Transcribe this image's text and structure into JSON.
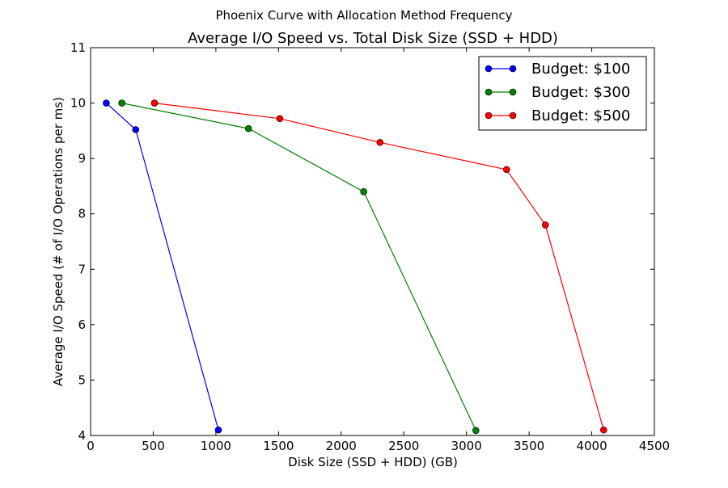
{
  "chart_data": {
    "type": "line",
    "suptitle": "Phoenix Curve with Allocation Method Frequency",
    "title": "Average I/O Speed vs. Total Disk Size (SSD + HDD)",
    "xlabel": "Disk Size (SSD + HDD) (GB)",
    "ylabel": "Average I/O Speed (# of I/O Operations per ms)",
    "xlim": [
      0,
      4500
    ],
    "ylim": [
      4,
      11
    ],
    "xticks": [
      0,
      500,
      1000,
      1500,
      2000,
      2500,
      3000,
      3500,
      4000,
      4500
    ],
    "yticks": [
      4,
      5,
      6,
      7,
      8,
      9,
      10,
      11
    ],
    "grid": false,
    "legend_position": "top-right",
    "series": [
      {
        "name": "Budget: $100",
        "color": "#0000ff",
        "x": [
          125,
          360,
          1020
        ],
        "y": [
          10.0,
          9.52,
          4.1
        ]
      },
      {
        "name": "Budget: $300",
        "color": "#008000",
        "x": [
          250,
          1260,
          2180,
          3075
        ],
        "y": [
          10.0,
          9.54,
          8.4,
          4.09
        ]
      },
      {
        "name": "Budget: $500",
        "color": "#ff0000",
        "x": [
          510,
          1510,
          2310,
          3320,
          3630,
          4095
        ],
        "y": [
          10.0,
          9.72,
          9.29,
          8.8,
          7.8,
          4.1
        ]
      }
    ]
  }
}
